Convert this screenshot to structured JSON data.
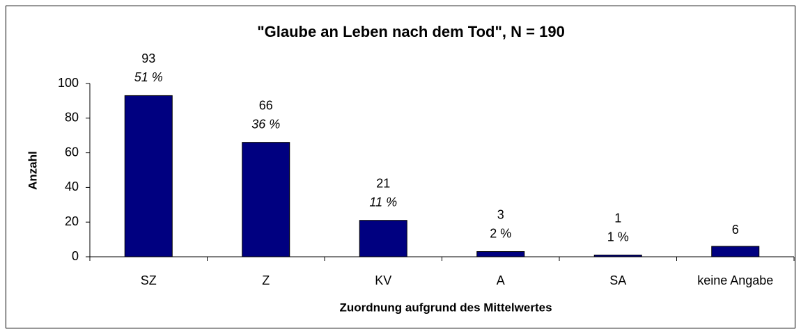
{
  "chart_data": {
    "type": "bar",
    "title": "\"Glaube an Leben nach dem Tod\", N = 190",
    "x_label": "Zuordnung aufgrund des Mittelwertes",
    "y_label": "Anzahl",
    "categories": [
      "SZ",
      "Z",
      "KV",
      "A",
      "SA",
      "keine Angabe"
    ],
    "values": [
      93,
      66,
      21,
      3,
      1,
      6
    ],
    "percent_labels": [
      "51 %",
      "36 %",
      "11 %",
      "2 %",
      "1 %",
      null
    ],
    "color": "#000080",
    "ylim": [
      0,
      100
    ],
    "yticks": [
      0,
      20,
      40,
      60,
      80,
      100
    ],
    "grid": false
  }
}
